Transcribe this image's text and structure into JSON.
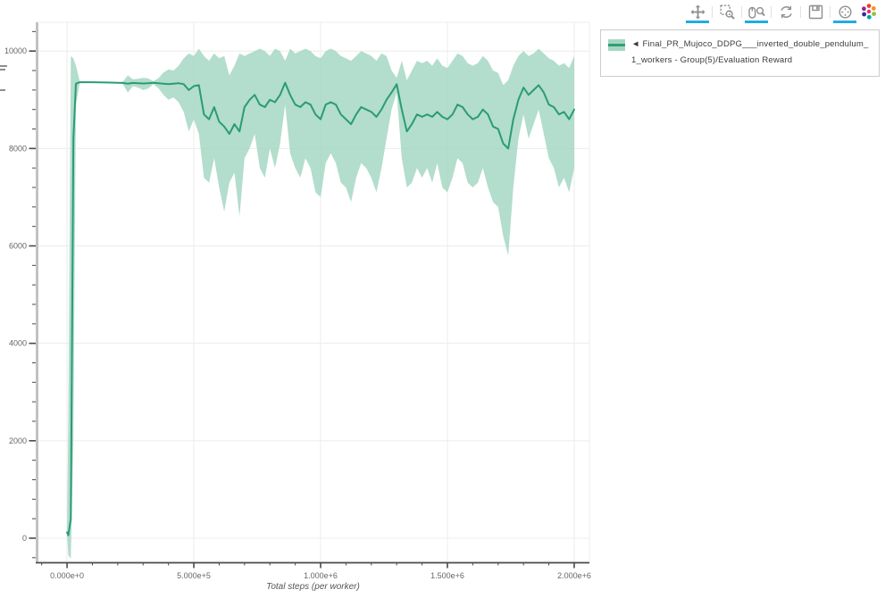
{
  "toolbar": {
    "accent_color": "#26aae1",
    "tools": [
      {
        "name": "pan",
        "active": true
      },
      {
        "name": "box-zoom",
        "active": false
      },
      {
        "name": "wheel-zoom",
        "active": true
      },
      {
        "name": "reset",
        "active": false
      },
      {
        "name": "save",
        "active": false
      },
      {
        "name": "hover",
        "active": true
      }
    ]
  },
  "legend": {
    "label_line1": "◄ Final_PR_Mujoco_DDPG___inverted_double_pendulum_",
    "label_line2": "1_workers - Group(5)/Evaluation Reward",
    "marker_band_color": "#a5d6c2",
    "marker_line_color": "#2f9e77"
  },
  "chart_data": {
    "type": "line",
    "title": "",
    "xlabel": "Total steps (per worker)",
    "ylabel": "",
    "grid": true,
    "legend_position": "outside-top-right",
    "x_range": [
      -120000,
      2060000
    ],
    "y_range": [
      -495,
      10590
    ],
    "x_tick_values": [
      0,
      500000,
      1000000,
      1500000,
      2000000
    ],
    "x_tick_labels": [
      "0.000e+0",
      "5.000e+5",
      "1.000e+6",
      "1.500e+6",
      "2.000e+6"
    ],
    "x_minor_step": 100000,
    "y_tick_values": [
      0,
      2000,
      4000,
      6000,
      8000,
      10000
    ],
    "y_tick_labels": [
      "0",
      "2000",
      "4000",
      "6000",
      "8000",
      "10000"
    ],
    "y_minor_step": 400,
    "colors": {
      "line": "#2a9c74",
      "band": "#a6d7c3",
      "grid": "#ececec",
      "axis": "#4a4a4a",
      "y_axis_line": "#c2c2c2",
      "tick_label": "#666666"
    },
    "series": [
      {
        "name": "Final_PR_Mujoco_DDPG___inverted_double_pendulum_1_workers - Group(5)/Evaluation Reward",
        "x": [
          0,
          5000,
          15000,
          25000,
          35000,
          50000,
          100000,
          150000,
          200000,
          220000,
          240000,
          260000,
          280000,
          300000,
          320000,
          340000,
          360000,
          380000,
          400000,
          420000,
          440000,
          460000,
          480000,
          500000,
          520000,
          540000,
          560000,
          580000,
          600000,
          620000,
          640000,
          660000,
          680000,
          700000,
          720000,
          740000,
          760000,
          780000,
          800000,
          820000,
          840000,
          860000,
          880000,
          900000,
          920000,
          940000,
          960000,
          980000,
          1000000,
          1020000,
          1040000,
          1060000,
          1080000,
          1100000,
          1120000,
          1140000,
          1160000,
          1180000,
          1200000,
          1220000,
          1240000,
          1260000,
          1280000,
          1300000,
          1320000,
          1340000,
          1360000,
          1380000,
          1400000,
          1420000,
          1440000,
          1460000,
          1480000,
          1500000,
          1520000,
          1540000,
          1560000,
          1580000,
          1600000,
          1620000,
          1640000,
          1660000,
          1680000,
          1700000,
          1720000,
          1740000,
          1760000,
          1780000,
          1800000,
          1820000,
          1840000,
          1860000,
          1880000,
          1900000,
          1920000,
          1940000,
          1960000,
          1980000,
          2000000
        ],
        "mean": [
          120,
          60,
          400,
          8200,
          9330,
          9360,
          9360,
          9355,
          9350,
          9345,
          9330,
          9345,
          9340,
          9335,
          9340,
          9350,
          9340,
          9330,
          9320,
          9330,
          9340,
          9320,
          9200,
          9280,
          9300,
          8700,
          8600,
          8850,
          8550,
          8450,
          8300,
          8500,
          8350,
          8850,
          9000,
          9100,
          8900,
          8850,
          9000,
          8950,
          9100,
          9350,
          9100,
          8900,
          8850,
          8950,
          8900,
          8700,
          8600,
          8900,
          8950,
          8900,
          8700,
          8600,
          8500,
          8700,
          8850,
          8800,
          8750,
          8650,
          8800,
          9000,
          9150,
          9320,
          8800,
          8350,
          8500,
          8700,
          8650,
          8700,
          8650,
          8750,
          8650,
          8600,
          8700,
          8900,
          8850,
          8700,
          8600,
          8650,
          8800,
          8700,
          8450,
          8400,
          8100,
          8000,
          8600,
          9000,
          9250,
          9100,
          9200,
          9300,
          9150,
          8900,
          8850,
          8700,
          8750,
          8600,
          8800
        ],
        "lower": [
          80,
          -350,
          -420,
          2000,
          8900,
          9340,
          9350,
          9345,
          9340,
          9320,
          9150,
          9280,
          9250,
          9200,
          9230,
          9320,
          9240,
          9100,
          9000,
          9050,
          8950,
          8750,
          8350,
          8600,
          8300,
          7400,
          7300,
          7800,
          7200,
          6700,
          7300,
          7500,
          6600,
          7800,
          8000,
          8300,
          7600,
          7400,
          8000,
          7600,
          8100,
          8900,
          7900,
          7600,
          7400,
          7800,
          7600,
          7100,
          7000,
          7700,
          7900,
          7700,
          7300,
          7200,
          6900,
          7400,
          7700,
          7600,
          7400,
          7100,
          7600,
          8200,
          8800,
          9150,
          7800,
          7200,
          7300,
          7600,
          7400,
          7600,
          7300,
          7700,
          7200,
          7100,
          7400,
          7800,
          7700,
          7300,
          7200,
          7300,
          7600,
          7200,
          6900,
          6800,
          6200,
          5800,
          7200,
          8200,
          8700,
          8200,
          8500,
          8800,
          8300,
          7800,
          7600,
          7200,
          7400,
          7100,
          7600
        ],
        "upper": [
          200,
          2500,
          9900,
          9850,
          9700,
          9380,
          9370,
          9365,
          9360,
          9370,
          9500,
          9420,
          9430,
          9450,
          9440,
          9380,
          9440,
          9560,
          9620,
          9600,
          9700,
          9850,
          9950,
          9900,
          10050,
          9900,
          9800,
          9950,
          9850,
          9900,
          9500,
          9700,
          9950,
          9900,
          9950,
          10000,
          10050,
          10000,
          9900,
          10050,
          10000,
          9800,
          10050,
          9950,
          10000,
          10050,
          10000,
          9900,
          9850,
          10000,
          10050,
          10000,
          9900,
          9850,
          9800,
          9900,
          10000,
          9950,
          9900,
          9800,
          9950,
          9900,
          9600,
          9450,
          9800,
          9400,
          9600,
          9800,
          9750,
          9800,
          9700,
          9850,
          9700,
          9650,
          9800,
          9950,
          9900,
          9750,
          9700,
          9750,
          9900,
          9800,
          9600,
          9550,
          9300,
          9400,
          9700,
          9900,
          10000,
          9900,
          9950,
          10050,
          9950,
          9850,
          9800,
          9700,
          9750,
          9650,
          9900
        ]
      }
    ]
  }
}
